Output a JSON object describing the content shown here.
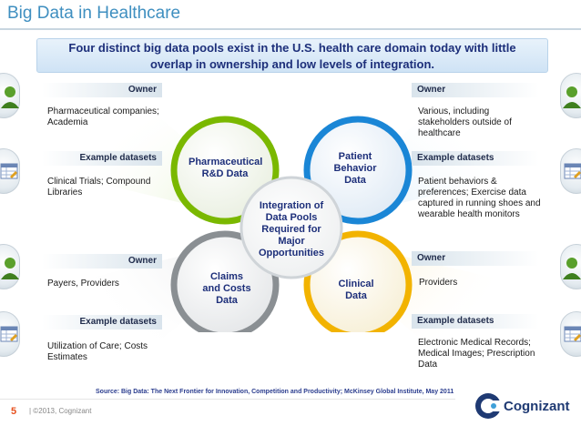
{
  "title": "Big Data in Healthcare",
  "banner": {
    "line1": "Four distinct big data pools exist in the U.S. health care domain today with little",
    "line2": "overlap in ownership and low levels of integration."
  },
  "center": {
    "lines": [
      "Integration of",
      "Data Pools",
      "Required for",
      "Major",
      "Opportunities"
    ]
  },
  "pools": {
    "pharma": {
      "lines": [
        "Pharmaceutical",
        "R&D Data"
      ],
      "color": "#7ab800"
    },
    "patient": {
      "lines": [
        "Patient",
        "Behavior",
        "Data"
      ],
      "color": "#1a86d6"
    },
    "claims": {
      "lines": [
        "Claims",
        "and Costs",
        "Data"
      ],
      "color": "#8a8f93"
    },
    "clinical": {
      "lines": [
        "Clinical",
        "Data"
      ],
      "color": "#f2b300"
    }
  },
  "quadrants": {
    "top_left": {
      "owner_label": "Owner",
      "owner_text": "Pharmaceutical companies; Academia",
      "datasets_label": "Example datasets",
      "datasets_text": "Clinical Trials; Compound Libraries"
    },
    "top_right": {
      "owner_label": "Owner",
      "owner_text": "Various, including stakeholders outside of healthcare",
      "datasets_label": "Example datasets",
      "datasets_text": "Patient behaviors & preferences; Exercise data captured in running shoes and wearable health monitors"
    },
    "bottom_left": {
      "owner_label": "Owner",
      "owner_text": "Payers, Providers",
      "datasets_label": "Example datasets",
      "datasets_text": "Utilization of Care; Costs Estimates"
    },
    "bottom_right": {
      "owner_label": "Owner",
      "owner_text": "Providers",
      "datasets_label": "Example datasets",
      "datasets_text": "Electronic Medical Records; Medical Images; Prescription Data"
    }
  },
  "source": "Source:  Big Data: The Next Frontier for Innovation, Competition and Productivity; McKinsey Global Institute, May 2011",
  "footer": {
    "page_number": "5",
    "copyright": "|  ©2013, Cognizant",
    "logo": "Cognizant"
  },
  "icons": {
    "owner": "person-icon",
    "datasets": "spreadsheet-icon"
  }
}
